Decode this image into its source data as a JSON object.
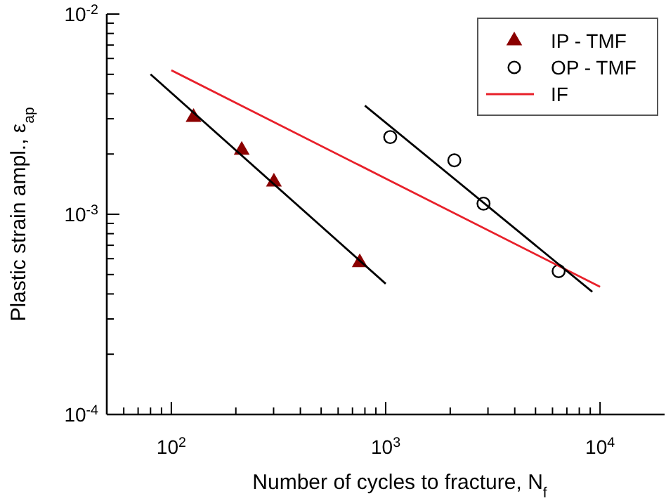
{
  "chart_data": {
    "type": "scatter",
    "log": "xy",
    "xlabel": "Number of cycles to fracture, N$_{f}$",
    "ylabel": "Plastic strain ampl., ε$_{ap}$",
    "xlim": [
      50,
      20000
    ],
    "ylim": [
      0.0001,
      0.01
    ],
    "xticks": [
      {
        "value": 60,
        "label": null
      },
      {
        "value": 70,
        "label": null
      },
      {
        "value": 80,
        "label": null
      },
      {
        "value": 90,
        "label": null
      },
      {
        "value": 100,
        "label": "10$^{2}$"
      },
      {
        "value": 200,
        "label": null
      },
      {
        "value": 300,
        "label": null
      },
      {
        "value": 400,
        "label": null
      },
      {
        "value": 500,
        "label": null
      },
      {
        "value": 600,
        "label": null
      },
      {
        "value": 700,
        "label": null
      },
      {
        "value": 800,
        "label": null
      },
      {
        "value": 900,
        "label": null
      },
      {
        "value": 1000,
        "label": "10$^{3}$"
      },
      {
        "value": 2000,
        "label": null
      },
      {
        "value": 3000,
        "label": null
      },
      {
        "value": 4000,
        "label": null
      },
      {
        "value": 5000,
        "label": null
      },
      {
        "value": 6000,
        "label": null
      },
      {
        "value": 7000,
        "label": null
      },
      {
        "value": 8000,
        "label": null
      },
      {
        "value": 9000,
        "label": null
      },
      {
        "value": 10000,
        "label": "10$^{4}$"
      }
    ],
    "yticks": [
      {
        "value": 0.0001,
        "label": "10$^{-4}$"
      },
      {
        "value": 0.0002,
        "label": null
      },
      {
        "value": 0.0003,
        "label": null
      },
      {
        "value": 0.0004,
        "label": null
      },
      {
        "value": 0.0005,
        "label": null
      },
      {
        "value": 0.0006,
        "label": null
      },
      {
        "value": 0.0007,
        "label": null
      },
      {
        "value": 0.0008,
        "label": null
      },
      {
        "value": 0.0009,
        "label": null
      },
      {
        "value": 0.001,
        "label": "10$^{-3}$"
      },
      {
        "value": 0.002,
        "label": null
      },
      {
        "value": 0.003,
        "label": null
      },
      {
        "value": 0.004,
        "label": null
      },
      {
        "value": 0.005,
        "label": null
      },
      {
        "value": 0.006,
        "label": null
      },
      {
        "value": 0.007,
        "label": null
      },
      {
        "value": 0.008,
        "label": null
      },
      {
        "value": 0.009,
        "label": null
      },
      {
        "value": 0.01,
        "label": "10$^{-2}$"
      }
    ],
    "grid": false,
    "legend": "top right",
    "series": [
      {
        "name": "IP - TMF",
        "marker": "triangle",
        "color": "#8b0000",
        "x": [
          127,
          213,
          301,
          757
        ],
        "values": [
          0.00305,
          0.00209,
          0.00145,
          0.000574
        ]
      },
      {
        "name": "OP - TMF",
        "marker": "circle",
        "color": "#000000",
        "x": [
          1050,
          2090,
          2860,
          6410
        ],
        "values": [
          0.00243,
          0.00186,
          0.00113,
          0.00052
        ]
      },
      {
        "name": "IF",
        "type": "line",
        "marker": "none",
        "color": "#e8202a",
        "x": [
          100,
          10000
        ],
        "values": [
          0.00524,
          0.000434
        ]
      },
      {
        "type": "line",
        "marker": "none",
        "color": "#000000",
        "x": [
          80,
          1000
        ],
        "values": [
          0.005,
          0.00045
        ]
      },
      {
        "type": "line",
        "marker": "none",
        "color": "#000000",
        "x": [
          800,
          9200
        ],
        "values": [
          0.00349,
          0.00041
        ]
      }
    ]
  }
}
